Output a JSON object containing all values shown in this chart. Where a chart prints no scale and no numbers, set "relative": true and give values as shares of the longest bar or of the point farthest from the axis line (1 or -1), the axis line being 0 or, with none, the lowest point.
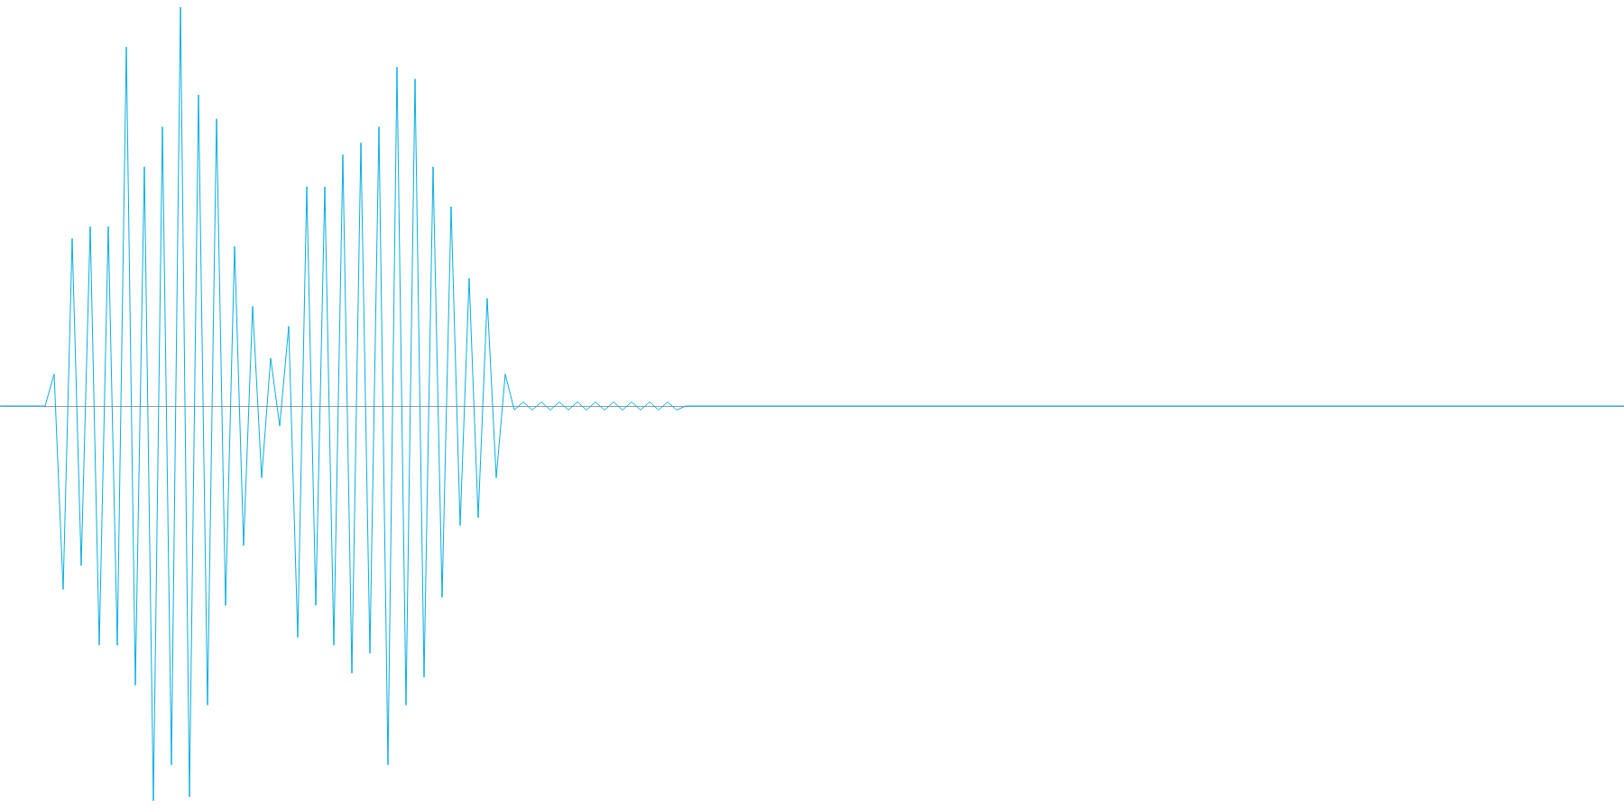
{
  "chart_data": {
    "type": "line",
    "relative": true,
    "tick_labels": false,
    "color": "#06aee4",
    "categories": [
      null,
      null,
      null,
      null,
      null,
      null,
      null,
      null,
      null,
      null,
      null,
      null,
      null,
      null,
      null,
      null,
      null,
      null,
      null,
      null,
      null,
      null,
      null,
      null,
      null,
      null,
      null,
      null,
      null,
      null,
      null,
      null,
      null,
      null,
      null,
      null,
      null,
      null,
      null,
      null,
      null,
      null,
      null,
      null,
      null,
      null,
      null,
      null,
      null,
      null,
      null,
      null,
      null,
      null,
      null,
      null,
      null,
      null,
      null,
      null,
      null,
      null,
      null,
      null,
      null,
      null,
      null,
      null,
      null,
      null,
      null,
      null,
      null,
      null,
      null,
      null,
      null,
      null,
      null,
      null,
      null,
      null,
      null,
      null,
      null,
      null,
      null,
      null,
      null,
      null,
      null,
      null,
      null,
      null,
      null,
      null,
      null,
      null,
      null,
      null,
      null,
      null,
      null,
      null,
      null,
      null,
      null,
      null,
      null,
      null,
      null,
      null,
      null,
      null,
      null,
      null,
      null,
      null,
      null,
      null,
      null,
      null,
      null,
      null,
      null,
      null,
      null,
      null,
      null,
      null,
      null,
      null,
      null,
      null,
      null,
      null,
      null,
      null,
      null,
      null,
      null,
      null,
      null,
      null,
      null,
      null,
      null,
      null,
      null,
      null,
      null,
      null,
      null,
      null,
      null,
      null,
      null,
      null,
      null,
      null,
      null,
      null,
      null,
      null,
      null,
      null,
      null,
      null,
      null,
      null,
      null,
      null,
      null,
      null,
      null,
      null,
      null,
      null,
      null,
      null,
      null
    ],
    "values": [
      0,
      0,
      0,
      0,
      0,
      0,
      0.08,
      -0.46,
      0.42,
      -0.4,
      0.45,
      -0.6,
      0.45,
      -0.6,
      0.9,
      -0.7,
      0.6,
      -0.99,
      0.7,
      -0.9,
      1,
      -0.98,
      0.78,
      -0.75,
      0.72,
      -0.5,
      0.4,
      -0.35,
      0.25,
      -0.18,
      0.12,
      -0.05,
      0.2,
      -0.58,
      0.55,
      -0.5,
      0.55,
      -0.6,
      0.63,
      -0.67,
      0.66,
      -0.62,
      0.7,
      -0.9,
      0.85,
      -0.75,
      0.82,
      -0.68,
      0.6,
      -0.48,
      0.5,
      -0.3,
      0.32,
      -0.28,
      0.27,
      -0.18,
      0.08,
      -0.01,
      0.01,
      -0.01,
      0.01,
      -0.01,
      0.01,
      -0.01,
      0.01,
      -0.01,
      0.01,
      -0.01,
      0.01,
      -0.01,
      0.01,
      -0.01,
      0.01,
      -0.01,
      0.01,
      -0.01,
      0,
      0,
      0,
      0,
      0,
      0,
      0,
      0,
      0,
      0,
      0,
      0,
      0,
      0,
      0,
      0,
      0,
      0,
      0,
      0,
      0,
      0,
      0,
      0,
      0,
      0,
      0,
      0,
      0,
      0,
      0,
      0,
      0,
      0,
      0,
      0,
      0,
      0,
      0,
      0,
      0,
      0,
      0,
      0,
      0,
      0,
      0,
      0,
      0,
      0,
      0,
      0,
      0,
      0,
      0,
      0,
      0,
      0,
      0,
      0,
      0,
      0,
      0,
      0,
      0,
      0,
      0,
      0,
      0,
      0,
      0,
      0,
      0,
      0,
      0,
      0,
      0,
      0,
      0,
      0,
      0,
      0,
      0,
      0,
      0,
      0,
      0,
      0,
      0,
      0,
      0,
      0,
      0,
      0,
      0,
      0,
      0,
      0,
      0,
      0,
      0,
      0,
      0,
      0,
      0
    ]
  }
}
